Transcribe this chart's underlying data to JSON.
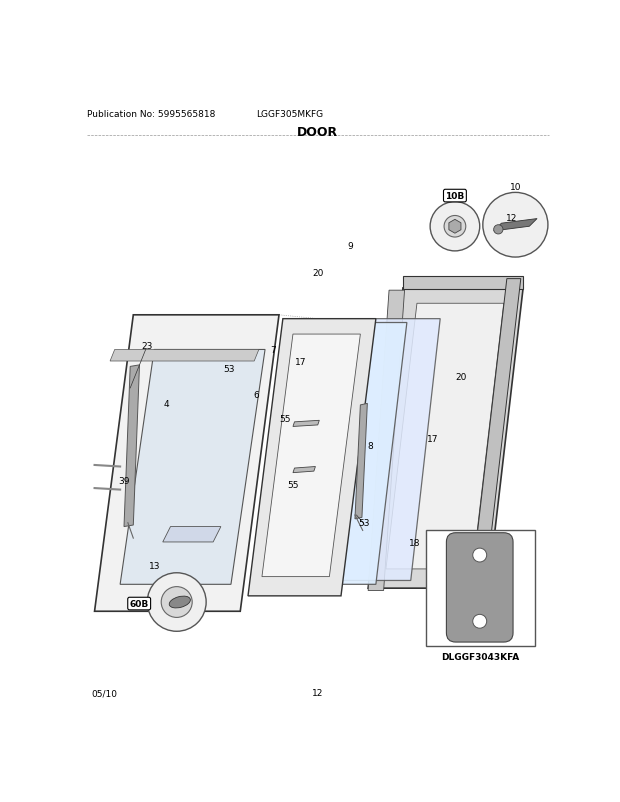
{
  "publication_no": "Publication No: 5995565818",
  "model": "LGGF305MKFG",
  "title": "DOOR",
  "footer_left": "05/10",
  "footer_center": "12",
  "bg_color": "#ffffff",
  "header_fontsize": 7,
  "title_fontsize": 9,
  "footer_fontsize": 7,
  "text_color": "#000000",
  "dlggf_label": "DLGGF3043KFA"
}
